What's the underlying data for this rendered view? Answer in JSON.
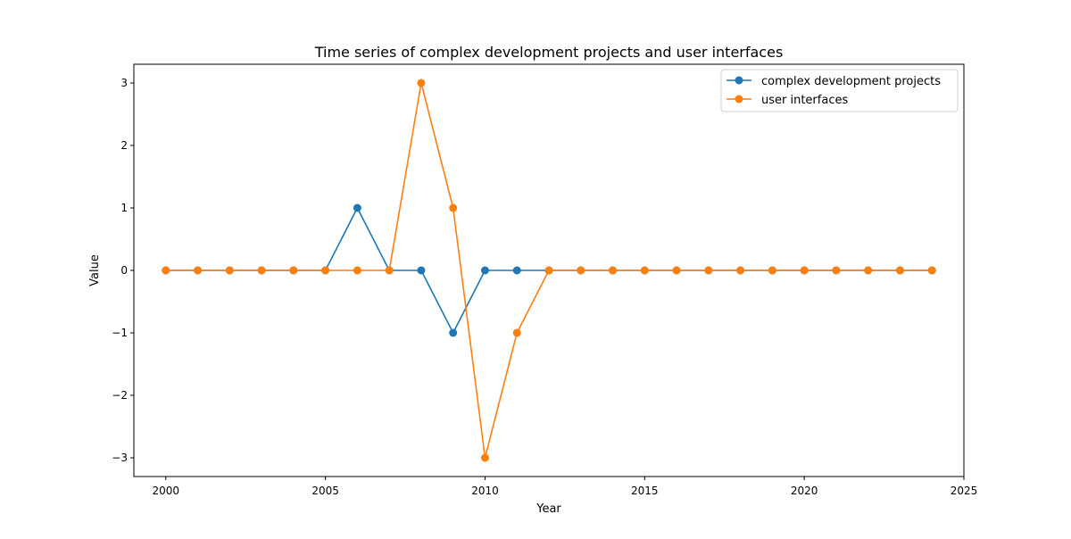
{
  "chart_data": {
    "type": "line",
    "title": "Time series of complex development projects and user interfaces",
    "xlabel": "Year",
    "ylabel": "Value",
    "xlim": [
      1999,
      2025
    ],
    "ylim": [
      -3.3,
      3.3
    ],
    "xticks": [
      2000,
      2005,
      2010,
      2015,
      2020,
      2025
    ],
    "xtick_labels": [
      "2000",
      "2005",
      "2010",
      "2015",
      "2020",
      "2025"
    ],
    "yticks": [
      -3,
      -2,
      -1,
      0,
      1,
      2,
      3
    ],
    "ytick_labels": [
      "−3",
      "−2",
      "−1",
      "0",
      "1",
      "2",
      "3"
    ],
    "grid": false,
    "legend_position": "top-right",
    "x": [
      2000,
      2001,
      2002,
      2003,
      2004,
      2005,
      2006,
      2007,
      2008,
      2009,
      2010,
      2011,
      2012,
      2013,
      2014,
      2015,
      2016,
      2017,
      2018,
      2019,
      2020,
      2021,
      2022,
      2023,
      2024
    ],
    "series": [
      {
        "name": "complex development projects",
        "color": "#1f77b4",
        "values": [
          0,
          0,
          0,
          0,
          0,
          0,
          1,
          0,
          0,
          -1,
          0,
          0,
          0,
          0,
          0,
          0,
          0,
          0,
          0,
          0,
          0,
          0,
          0,
          0,
          0
        ]
      },
      {
        "name": "user interfaces",
        "color": "#ff7f0e",
        "values": [
          0,
          0,
          0,
          0,
          0,
          0,
          0,
          0,
          3,
          1,
          -3,
          -1,
          0,
          0,
          0,
          0,
          0,
          0,
          0,
          0,
          0,
          0,
          0,
          0,
          0
        ]
      }
    ]
  }
}
